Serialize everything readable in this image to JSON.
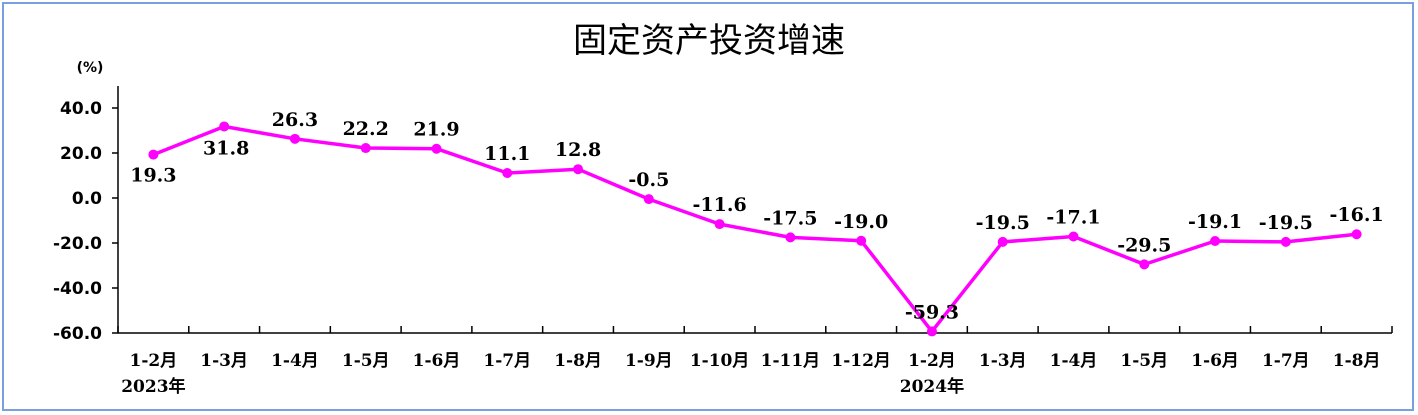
{
  "chart_data": {
    "type": "line",
    "title": "固定资产投资增速",
    "ylabel": "(%)",
    "ylim": [
      -60,
      40
    ],
    "yticks": [
      "40.0",
      "20.0",
      "0.0",
      "-20.0",
      "-40.0",
      "-60.0"
    ],
    "ytick_values": [
      40,
      20,
      0,
      -20,
      -40,
      -60
    ],
    "categories": [
      "1-2月",
      "1-3月",
      "1-4月",
      "1-5月",
      "1-6月",
      "1-7月",
      "1-8月",
      "1-9月",
      "1-10月",
      "1-11月",
      "1-12月",
      "1-2月",
      "1-3月",
      "1-4月",
      "1-5月",
      "1-6月",
      "1-7月",
      "1-8月"
    ],
    "year_labels": [
      {
        "index": 0,
        "text": "2023年"
      },
      {
        "index": 11,
        "text": "2024年"
      }
    ],
    "series": [
      {
        "values": [
          19.3,
          31.8,
          26.3,
          22.2,
          21.9,
          11.1,
          12.8,
          -0.5,
          -11.6,
          -17.5,
          -19.0,
          -59.3,
          -19.5,
          -17.1,
          -29.5,
          -19.1,
          -19.5,
          -16.1
        ],
        "labels": [
          "19.3",
          "31.8",
          "26.3",
          "22.2",
          "21.9",
          "11.1",
          "12.8",
          "-0.5",
          "-11.6",
          "-17.5",
          "-19.0",
          "-59.3",
          "-19.5",
          "-17.1",
          "-29.5",
          "-19.1",
          "-19.5",
          "-16.1"
        ],
        "color": "#ff00ff"
      }
    ],
    "grid": false
  }
}
